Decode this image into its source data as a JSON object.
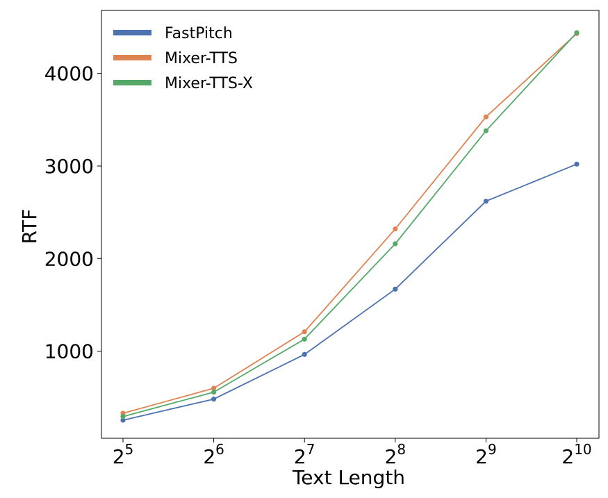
{
  "chart_data": {
    "type": "line",
    "xlabel": "Text Length",
    "ylabel": "RTF",
    "x": [
      5,
      6,
      7,
      8,
      9,
      10
    ],
    "x_tick_labels": [
      {
        "base": "2",
        "exp": "5"
      },
      {
        "base": "2",
        "exp": "6"
      },
      {
        "base": "2",
        "exp": "7"
      },
      {
        "base": "2",
        "exp": "8"
      },
      {
        "base": "2",
        "exp": "9"
      },
      {
        "base": "2",
        "exp": "10"
      }
    ],
    "x_scale": "log2",
    "y_ticks": [
      1000,
      2000,
      3000,
      4000
    ],
    "y_tick_labels": [
      "1000",
      "2000",
      "3000",
      "4000"
    ],
    "ylim": [
      60,
      4680
    ],
    "grid": false,
    "legend_position": "top-left",
    "series": [
      {
        "name": "FastPitch",
        "color": "#4c72b0",
        "values": [
          255,
          483,
          965,
          1670,
          2620,
          3020
        ]
      },
      {
        "name": "Mixer-TTS",
        "color": "#dd8452",
        "values": [
          330,
          600,
          1210,
          2320,
          3530,
          4430
        ]
      },
      {
        "name": "Mixer-TTS-X",
        "color": "#55a868",
        "values": [
          295,
          558,
          1130,
          2160,
          3380,
          4440
        ]
      }
    ]
  }
}
